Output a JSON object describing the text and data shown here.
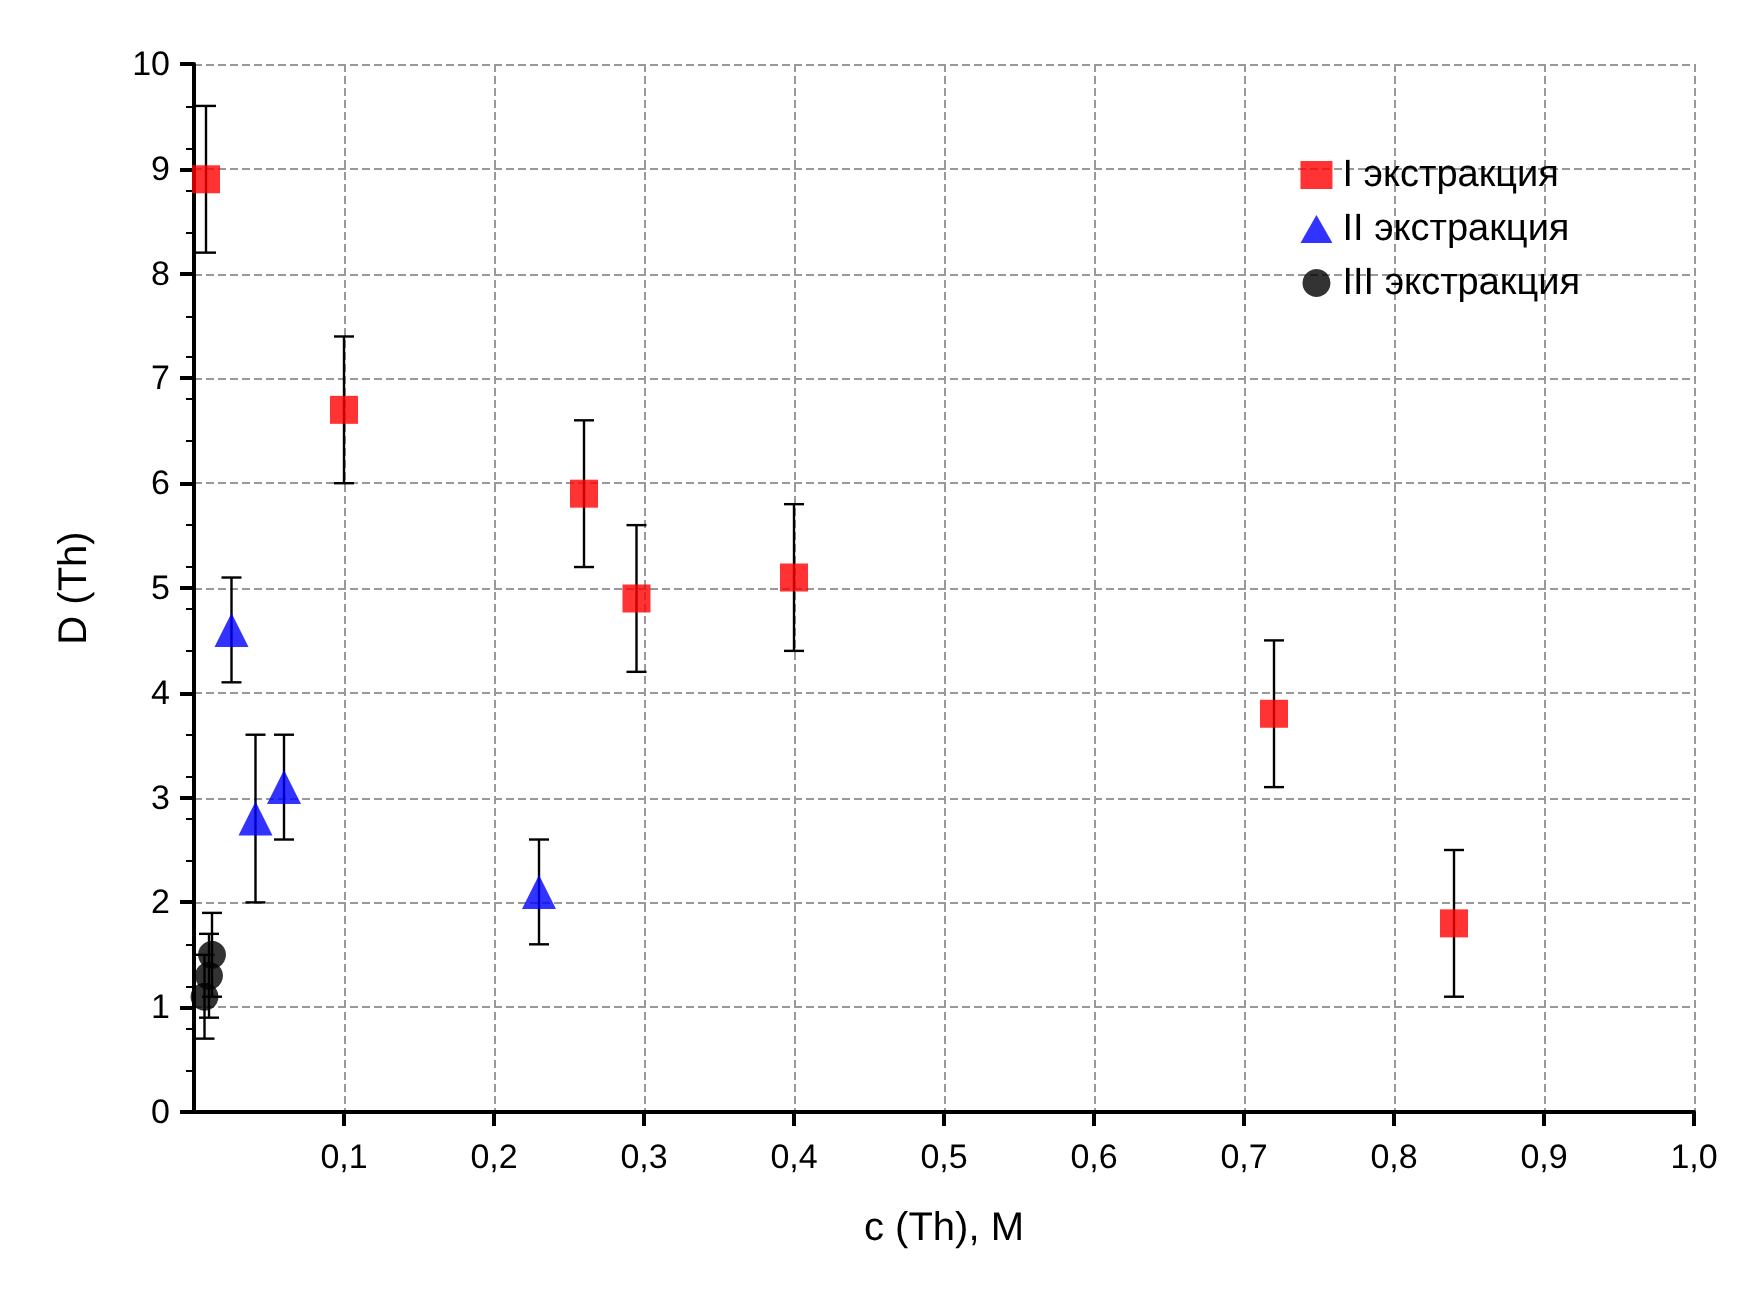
{
  "chart_data": {
    "type": "scatter",
    "xlabel": "c (Th), M",
    "ylabel": "D (Th)",
    "xlim": [
      0,
      1
    ],
    "xticks": [
      {
        "value": 0.1,
        "label": "0,1"
      },
      {
        "value": 0.2,
        "label": "0,2"
      },
      {
        "value": 0.3,
        "label": "0,3"
      },
      {
        "value": 0.4,
        "label": "0,4"
      },
      {
        "value": 0.5,
        "label": "0,5"
      },
      {
        "value": 0.6,
        "label": "0,6"
      },
      {
        "value": 0.7,
        "label": "0,7"
      },
      {
        "value": 0.8,
        "label": "0,8"
      },
      {
        "value": 0.9,
        "label": "0,9"
      },
      {
        "value": 1.0,
        "label": "1,0"
      }
    ],
    "ylim": [
      0,
      10
    ],
    "yticks": [
      0,
      1,
      2,
      3,
      4,
      5,
      6,
      7,
      8,
      9,
      10
    ],
    "grid": true,
    "legend": "top right",
    "series": [
      {
        "name": "I экстракция",
        "color": "#ff0000",
        "marker": "square",
        "x": [
          0.008,
          0.1,
          0.26,
          0.295,
          0.4,
          0.72,
          0.84
        ],
        "values": [
          8.9,
          6.7,
          5.9,
          4.9,
          5.1,
          3.8,
          1.8
        ],
        "errors": [
          0.7,
          0.7,
          0.7,
          0.7,
          0.7,
          0.7,
          0.7
        ]
      },
      {
        "name": "II экстракция",
        "color": "#0000ff",
        "marker": "triangle",
        "x": [
          0.025,
          0.041,
          0.06,
          0.23
        ],
        "values": [
          4.6,
          2.8,
          3.1,
          2.1
        ],
        "errors": [
          0.5,
          0.8,
          0.5,
          0.5
        ]
      },
      {
        "name": "III экстракция",
        "color": "#000000",
        "marker": "circle",
        "x": [
          0.007,
          0.01,
          0.012
        ],
        "values": [
          1.1,
          1.3,
          1.5
        ],
        "errors": [
          0.4,
          0.4,
          0.4
        ]
      }
    ]
  }
}
